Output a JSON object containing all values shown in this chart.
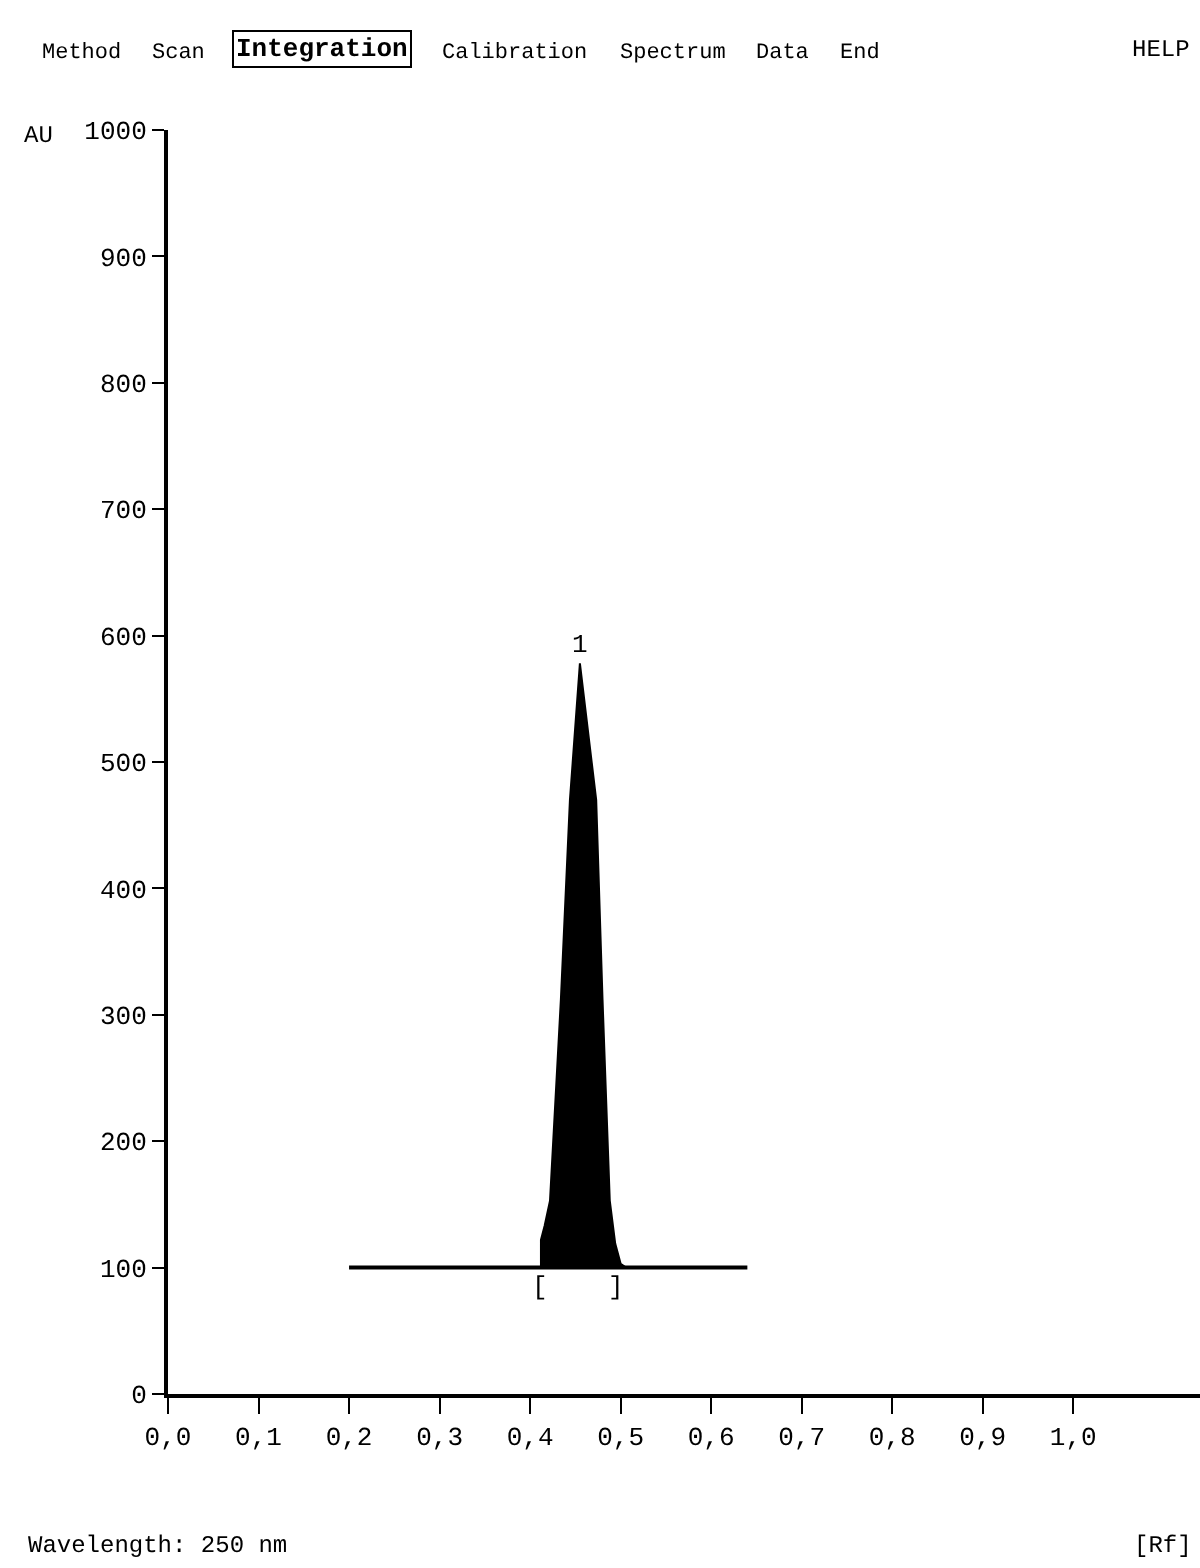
{
  "chart_data": {
    "type": "area",
    "ylabel": "AU",
    "xlabel": "[Rf]",
    "annotations": [
      "Method",
      "Scan",
      "Integration",
      "Calibration",
      "Spectrum",
      "Data",
      "End",
      "HELP",
      "Wavelength: 250 nm",
      {
        "text": "1",
        "x": 0.455,
        "y": 578
      },
      {
        "text": "[",
        "x": 0.412,
        "y": 100
      },
      {
        "text": "]",
        "x": 0.494,
        "y": 100
      }
    ],
    "series": [
      {
        "type": "line",
        "color": "#000000",
        "x": [
          0.2,
          0.64
        ],
        "values": [
          100,
          100
        ]
      },
      {
        "color": "#000000",
        "x": [
          0.412,
          0.412,
          0.416,
          0.422,
          0.434,
          0.444,
          0.455,
          0.473,
          0.48,
          0.488,
          0.494,
          0.5,
          0.506
        ],
        "values": [
          100,
          122,
          133,
          153,
          312,
          470,
          578,
          470,
          312,
          153,
          119,
          103,
          100
        ]
      }
    ],
    "xlim": [
      0,
      1.14
    ],
    "ylim": [
      0,
      1000
    ],
    "xticks": [
      {
        "value": 0,
        "label": "0,0"
      },
      {
        "value": 0.1,
        "label": "0,1"
      },
      {
        "value": 0.2,
        "label": "0,2"
      },
      {
        "value": 0.3,
        "label": "0,3"
      },
      {
        "value": 0.4,
        "label": "0,4"
      },
      {
        "value": 0.5,
        "label": "0,5"
      },
      {
        "value": 0.6,
        "label": "0,6"
      },
      {
        "value": 0.7,
        "label": "0,7"
      },
      {
        "value": 0.8,
        "label": "0,8"
      },
      {
        "value": 0.9,
        "label": "0,9"
      },
      {
        "value": 1.0,
        "label": "1,0"
      }
    ],
    "yticks": [
      0,
      100,
      200,
      300,
      400,
      500,
      600,
      700,
      800,
      900,
      1000
    ]
  }
}
